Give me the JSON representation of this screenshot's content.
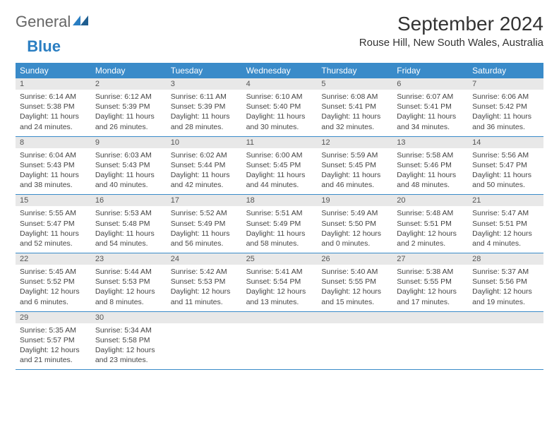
{
  "logo": {
    "word1": "General",
    "word2": "Blue"
  },
  "title": "September 2024",
  "subtitle": "Rouse Hill, New South Wales, Australia",
  "colors": {
    "header_bg": "#3a8bc9",
    "header_text": "#ffffff",
    "daynum_bg": "#e8e8e8",
    "text": "#444444",
    "logo_blue": "#2a7ec2",
    "border": "#3a8bc9"
  },
  "daynames": [
    "Sunday",
    "Monday",
    "Tuesday",
    "Wednesday",
    "Thursday",
    "Friday",
    "Saturday"
  ],
  "weeks": [
    [
      {
        "n": "1",
        "sunrise": "Sunrise: 6:14 AM",
        "sunset": "Sunset: 5:38 PM",
        "day1": "Daylight: 11 hours",
        "day2": "and 24 minutes."
      },
      {
        "n": "2",
        "sunrise": "Sunrise: 6:12 AM",
        "sunset": "Sunset: 5:39 PM",
        "day1": "Daylight: 11 hours",
        "day2": "and 26 minutes."
      },
      {
        "n": "3",
        "sunrise": "Sunrise: 6:11 AM",
        "sunset": "Sunset: 5:39 PM",
        "day1": "Daylight: 11 hours",
        "day2": "and 28 minutes."
      },
      {
        "n": "4",
        "sunrise": "Sunrise: 6:10 AM",
        "sunset": "Sunset: 5:40 PM",
        "day1": "Daylight: 11 hours",
        "day2": "and 30 minutes."
      },
      {
        "n": "5",
        "sunrise": "Sunrise: 6:08 AM",
        "sunset": "Sunset: 5:41 PM",
        "day1": "Daylight: 11 hours",
        "day2": "and 32 minutes."
      },
      {
        "n": "6",
        "sunrise": "Sunrise: 6:07 AM",
        "sunset": "Sunset: 5:41 PM",
        "day1": "Daylight: 11 hours",
        "day2": "and 34 minutes."
      },
      {
        "n": "7",
        "sunrise": "Sunrise: 6:06 AM",
        "sunset": "Sunset: 5:42 PM",
        "day1": "Daylight: 11 hours",
        "day2": "and 36 minutes."
      }
    ],
    [
      {
        "n": "8",
        "sunrise": "Sunrise: 6:04 AM",
        "sunset": "Sunset: 5:43 PM",
        "day1": "Daylight: 11 hours",
        "day2": "and 38 minutes."
      },
      {
        "n": "9",
        "sunrise": "Sunrise: 6:03 AM",
        "sunset": "Sunset: 5:43 PM",
        "day1": "Daylight: 11 hours",
        "day2": "and 40 minutes."
      },
      {
        "n": "10",
        "sunrise": "Sunrise: 6:02 AM",
        "sunset": "Sunset: 5:44 PM",
        "day1": "Daylight: 11 hours",
        "day2": "and 42 minutes."
      },
      {
        "n": "11",
        "sunrise": "Sunrise: 6:00 AM",
        "sunset": "Sunset: 5:45 PM",
        "day1": "Daylight: 11 hours",
        "day2": "and 44 minutes."
      },
      {
        "n": "12",
        "sunrise": "Sunrise: 5:59 AM",
        "sunset": "Sunset: 5:45 PM",
        "day1": "Daylight: 11 hours",
        "day2": "and 46 minutes."
      },
      {
        "n": "13",
        "sunrise": "Sunrise: 5:58 AM",
        "sunset": "Sunset: 5:46 PM",
        "day1": "Daylight: 11 hours",
        "day2": "and 48 minutes."
      },
      {
        "n": "14",
        "sunrise": "Sunrise: 5:56 AM",
        "sunset": "Sunset: 5:47 PM",
        "day1": "Daylight: 11 hours",
        "day2": "and 50 minutes."
      }
    ],
    [
      {
        "n": "15",
        "sunrise": "Sunrise: 5:55 AM",
        "sunset": "Sunset: 5:47 PM",
        "day1": "Daylight: 11 hours",
        "day2": "and 52 minutes."
      },
      {
        "n": "16",
        "sunrise": "Sunrise: 5:53 AM",
        "sunset": "Sunset: 5:48 PM",
        "day1": "Daylight: 11 hours",
        "day2": "and 54 minutes."
      },
      {
        "n": "17",
        "sunrise": "Sunrise: 5:52 AM",
        "sunset": "Sunset: 5:49 PM",
        "day1": "Daylight: 11 hours",
        "day2": "and 56 minutes."
      },
      {
        "n": "18",
        "sunrise": "Sunrise: 5:51 AM",
        "sunset": "Sunset: 5:49 PM",
        "day1": "Daylight: 11 hours",
        "day2": "and 58 minutes."
      },
      {
        "n": "19",
        "sunrise": "Sunrise: 5:49 AM",
        "sunset": "Sunset: 5:50 PM",
        "day1": "Daylight: 12 hours",
        "day2": "and 0 minutes."
      },
      {
        "n": "20",
        "sunrise": "Sunrise: 5:48 AM",
        "sunset": "Sunset: 5:51 PM",
        "day1": "Daylight: 12 hours",
        "day2": "and 2 minutes."
      },
      {
        "n": "21",
        "sunrise": "Sunrise: 5:47 AM",
        "sunset": "Sunset: 5:51 PM",
        "day1": "Daylight: 12 hours",
        "day2": "and 4 minutes."
      }
    ],
    [
      {
        "n": "22",
        "sunrise": "Sunrise: 5:45 AM",
        "sunset": "Sunset: 5:52 PM",
        "day1": "Daylight: 12 hours",
        "day2": "and 6 minutes."
      },
      {
        "n": "23",
        "sunrise": "Sunrise: 5:44 AM",
        "sunset": "Sunset: 5:53 PM",
        "day1": "Daylight: 12 hours",
        "day2": "and 8 minutes."
      },
      {
        "n": "24",
        "sunrise": "Sunrise: 5:42 AM",
        "sunset": "Sunset: 5:53 PM",
        "day1": "Daylight: 12 hours",
        "day2": "and 11 minutes."
      },
      {
        "n": "25",
        "sunrise": "Sunrise: 5:41 AM",
        "sunset": "Sunset: 5:54 PM",
        "day1": "Daylight: 12 hours",
        "day2": "and 13 minutes."
      },
      {
        "n": "26",
        "sunrise": "Sunrise: 5:40 AM",
        "sunset": "Sunset: 5:55 PM",
        "day1": "Daylight: 12 hours",
        "day2": "and 15 minutes."
      },
      {
        "n": "27",
        "sunrise": "Sunrise: 5:38 AM",
        "sunset": "Sunset: 5:55 PM",
        "day1": "Daylight: 12 hours",
        "day2": "and 17 minutes."
      },
      {
        "n": "28",
        "sunrise": "Sunrise: 5:37 AM",
        "sunset": "Sunset: 5:56 PM",
        "day1": "Daylight: 12 hours",
        "day2": "and 19 minutes."
      }
    ],
    [
      {
        "n": "29",
        "sunrise": "Sunrise: 5:35 AM",
        "sunset": "Sunset: 5:57 PM",
        "day1": "Daylight: 12 hours",
        "day2": "and 21 minutes."
      },
      {
        "n": "30",
        "sunrise": "Sunrise: 5:34 AM",
        "sunset": "Sunset: 5:58 PM",
        "day1": "Daylight: 12 hours",
        "day2": "and 23 minutes."
      },
      {
        "empty": true
      },
      {
        "empty": true
      },
      {
        "empty": true
      },
      {
        "empty": true
      },
      {
        "empty": true
      }
    ]
  ]
}
